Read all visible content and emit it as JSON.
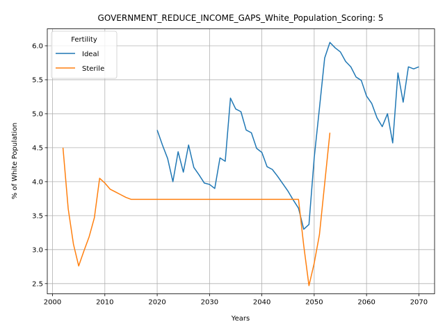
{
  "chart_data": {
    "type": "line",
    "title": "GOVERNMENT_REDUCE_INCOME_GAPS_White_Population_Scoring: 5",
    "xlabel": "Years",
    "ylabel": "% of White Population",
    "xlim": [
      1999,
      2073
    ],
    "ylim": [
      2.35,
      6.25
    ],
    "xticks": [
      2000,
      2010,
      2020,
      2030,
      2040,
      2050,
      2060,
      2070
    ],
    "yticks": [
      2.5,
      3.0,
      3.5,
      4.0,
      4.5,
      5.0,
      5.5,
      6.0
    ],
    "ytick_labels": [
      "2.5",
      "3.0",
      "3.5",
      "4.0",
      "4.5",
      "5.0",
      "5.5",
      "6.0"
    ],
    "grid": true,
    "legend": {
      "title": "Fertility",
      "placement": "top-left"
    },
    "series": [
      {
        "name": "Ideal",
        "color": "#1f77b4",
        "x": [
          2020,
          2021,
          2022,
          2023,
          2024,
          2025,
          2026,
          2027,
          2028,
          2029,
          2030,
          2031,
          2032,
          2033,
          2034,
          2035,
          2036,
          2037,
          2038,
          2039,
          2040,
          2041,
          2042,
          2043,
          2044,
          2045,
          2046,
          2047,
          2048,
          2049,
          2050,
          2051,
          2052,
          2053,
          2054,
          2055,
          2056,
          2057,
          2058,
          2059,
          2060,
          2061,
          2062,
          2063,
          2064,
          2065,
          2066,
          2067,
          2068,
          2069,
          2070
        ],
        "y": [
          4.76,
          4.54,
          4.34,
          4.0,
          4.44,
          4.14,
          4.54,
          4.21,
          4.1,
          3.98,
          3.96,
          3.9,
          4.35,
          4.3,
          5.23,
          5.07,
          5.03,
          4.76,
          4.72,
          4.49,
          4.43,
          4.22,
          4.18,
          4.08,
          3.97,
          3.86,
          3.73,
          3.61,
          3.3,
          3.37,
          4.35,
          5.08,
          5.82,
          6.05,
          5.97,
          5.91,
          5.77,
          5.69,
          5.54,
          5.49,
          5.26,
          5.15,
          4.94,
          4.81,
          5.0,
          4.57,
          5.6,
          5.17,
          5.69,
          5.66,
          5.69
        ]
      },
      {
        "name": "Sterile",
        "color": "#ff7f0e",
        "x": [
          2002,
          2003,
          2004,
          2005,
          2006,
          2007,
          2008,
          2009,
          2010,
          2011,
          2012,
          2013,
          2014,
          2015,
          2016,
          2017,
          2018,
          2019,
          2020,
          2021,
          2022,
          2023,
          2024,
          2025,
          2026,
          2027,
          2028,
          2029,
          2030,
          2031,
          2032,
          2033,
          2034,
          2035,
          2036,
          2037,
          2038,
          2039,
          2040,
          2041,
          2042,
          2043,
          2044,
          2045,
          2046,
          2047,
          2048,
          2049,
          2050,
          2051,
          2052,
          2053
        ],
        "y": [
          4.5,
          3.6,
          3.08,
          2.76,
          2.98,
          3.19,
          3.47,
          4.05,
          3.98,
          3.89,
          3.85,
          3.81,
          3.77,
          3.74,
          3.74,
          3.74,
          3.74,
          3.74,
          3.74,
          3.74,
          3.74,
          3.74,
          3.74,
          3.74,
          3.74,
          3.74,
          3.74,
          3.74,
          3.74,
          3.74,
          3.74,
          3.74,
          3.74,
          3.74,
          3.74,
          3.74,
          3.74,
          3.74,
          3.74,
          3.74,
          3.74,
          3.74,
          3.74,
          3.74,
          3.74,
          3.74,
          3.06,
          2.47,
          2.8,
          3.22,
          3.97,
          4.72
        ]
      }
    ]
  }
}
